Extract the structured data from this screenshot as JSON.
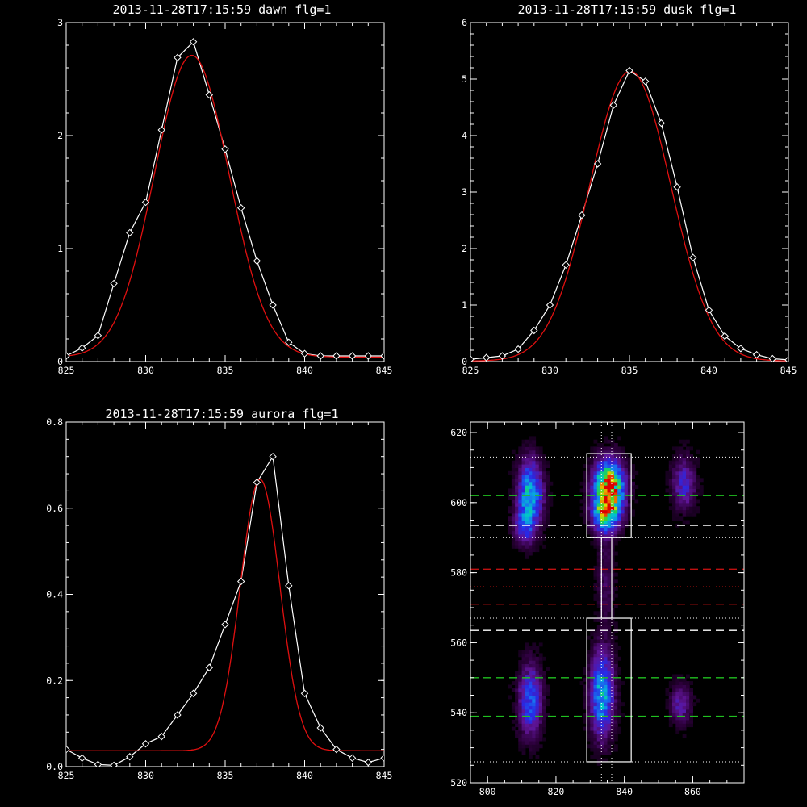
{
  "colors": {
    "background": "#000000",
    "axes": "#ffffff",
    "data_line": "#ffffff",
    "fit_line": "#e01010",
    "green_dash": "#20c020",
    "red_dash": "#c01010"
  },
  "chart_data": [
    {
      "type": "line",
      "title": "2013-11-28T17:15:59 dawn flg=1",
      "xlim": [
        825,
        845
      ],
      "ylim": [
        0,
        3
      ],
      "x_ticks": [
        825,
        830,
        835,
        840,
        845
      ],
      "y_ticks": [
        0,
        1,
        2,
        3
      ],
      "series": [
        {
          "style": "data-diamonds",
          "x": [
            825,
            826,
            827,
            828,
            829,
            830,
            831,
            832,
            833,
            834,
            835,
            836,
            837,
            838,
            839,
            840,
            841,
            842,
            843,
            844,
            845
          ],
          "values": [
            0.05,
            0.12,
            0.23,
            0.69,
            1.14,
            1.41,
            2.05,
            2.69,
            2.83,
            2.36,
            1.88,
            1.36,
            0.89,
            0.5,
            0.17,
            0.07,
            0.05,
            0.05,
            0.05,
            0.05,
            0.05
          ]
        },
        {
          "style": "fit-curve",
          "model": "gaussian",
          "amplitude": 2.67,
          "center": 832.9,
          "sigma": 2.35,
          "offset": 0.04
        }
      ]
    },
    {
      "type": "line",
      "title": "2013-11-28T17:15:59 dusk flg=1",
      "xlim": [
        825,
        845
      ],
      "ylim": [
        0,
        6
      ],
      "x_ticks": [
        825,
        830,
        835,
        840,
        845
      ],
      "y_ticks": [
        0,
        1,
        2,
        3,
        4,
        5,
        6
      ],
      "series": [
        {
          "style": "data-diamonds",
          "x": [
            825,
            826,
            827,
            828,
            829,
            830,
            831,
            832,
            833,
            834,
            835,
            836,
            837,
            838,
            839,
            840,
            841,
            842,
            843,
            844,
            845
          ],
          "values": [
            0.04,
            0.07,
            0.1,
            0.22,
            0.55,
            1.0,
            1.71,
            2.59,
            3.5,
            4.54,
            5.15,
            4.96,
            4.22,
            3.09,
            1.84,
            0.91,
            0.45,
            0.23,
            0.12,
            0.05,
            0.03
          ]
        },
        {
          "style": "fit-curve",
          "model": "gaussian",
          "amplitude": 5.13,
          "center": 835.05,
          "sigma": 2.55,
          "offset": 0.01
        }
      ]
    },
    {
      "type": "line",
      "title": "2013-11-28T17:15:59 aurora flg=1",
      "xlim": [
        825,
        845
      ],
      "ylim": [
        0,
        0.8
      ],
      "x_ticks": [
        825,
        830,
        835,
        840,
        845
      ],
      "y_ticks": [
        0.0,
        0.2,
        0.4,
        0.6,
        0.8
      ],
      "y_tick_labels": [
        "0.0",
        "0.2",
        "0.4",
        "0.6",
        "0.8"
      ],
      "series": [
        {
          "style": "data-diamonds",
          "x": [
            825,
            826,
            827,
            828,
            829,
            830,
            831,
            832,
            833,
            834,
            835,
            836,
            837,
            838,
            839,
            840,
            841,
            842,
            843,
            844,
            845
          ],
          "values": [
            0.04,
            0.02,
            0.005,
            0.003,
            0.023,
            0.053,
            0.07,
            0.12,
            0.17,
            0.23,
            0.33,
            0.43,
            0.66,
            0.72,
            0.42,
            0.17,
            0.09,
            0.04,
            0.02,
            0.01,
            0.02
          ]
        },
        {
          "style": "fit-curve",
          "model": "gaussian",
          "amplitude": 0.63,
          "center": 837.2,
          "sigma": 1.25,
          "offset": 0.037
        }
      ]
    },
    {
      "type": "heatmap",
      "xlim": [
        795,
        875
      ],
      "ylim": [
        520,
        623
      ],
      "x_ticks": [
        800,
        820,
        840,
        860
      ],
      "y_ticks": [
        520,
        540,
        560,
        580,
        600,
        620
      ],
      "blobs": [
        {
          "x": 812,
          "y": 602,
          "sx": 2.4,
          "sy": 6.5,
          "amp": 0.58
        },
        {
          "x": 810,
          "y": 593,
          "sx": 2.0,
          "sy": 3.5,
          "amp": 0.28
        },
        {
          "x": 835,
          "y": 604,
          "sx": 2.9,
          "sy": 5.0,
          "amp": 1.0
        },
        {
          "x": 834,
          "y": 596,
          "sx": 2.7,
          "sy": 3.5,
          "amp": 0.55
        },
        {
          "x": 857,
          "y": 605,
          "sx": 2.3,
          "sy": 5.0,
          "amp": 0.28
        },
        {
          "x": 812,
          "y": 543,
          "sx": 2.3,
          "sy": 7.0,
          "amp": 0.4
        },
        {
          "x": 833,
          "y": 545,
          "sx": 2.3,
          "sy": 8.0,
          "amp": 0.55
        },
        {
          "x": 856,
          "y": 542,
          "sx": 2.1,
          "sy": 4.0,
          "amp": 0.22
        },
        {
          "x": 834,
          "y": 578,
          "sx": 1.8,
          "sy": 10.0,
          "amp": 0.12
        }
      ],
      "boxes": [
        {
          "x0": 829,
          "x1": 842,
          "y0": 590,
          "y1": 614
        },
        {
          "x0": 829,
          "x1": 842,
          "y0": 526,
          "y1": 567
        },
        {
          "x0": 833.3,
          "x1": 836.3,
          "y0": 567,
          "y1": 590
        }
      ],
      "hlines": [
        {
          "y": 602,
          "color": "green",
          "dash": "long"
        },
        {
          "y": 550,
          "color": "green",
          "dash": "long"
        },
        {
          "y": 539,
          "color": "green",
          "dash": "long"
        },
        {
          "y": 593.5,
          "color": "white",
          "dash": "long"
        },
        {
          "y": 563.5,
          "color": "white",
          "dash": "long"
        },
        {
          "y": 581,
          "color": "red",
          "dash": "long"
        },
        {
          "y": 571,
          "color": "red",
          "dash": "long"
        },
        {
          "y": 613,
          "color": "white",
          "dash": "dot"
        },
        {
          "y": 590,
          "color": "white",
          "dash": "dot"
        },
        {
          "y": 576,
          "color": "red",
          "dash": "dot"
        },
        {
          "y": 567,
          "color": "white",
          "dash": "dot"
        },
        {
          "y": 526,
          "color": "white",
          "dash": "dot"
        }
      ],
      "vlines": [
        {
          "x": 833.3,
          "color": "white",
          "dash": "dot"
        },
        {
          "x": 836.3,
          "color": "white",
          "dash": "dot"
        }
      ]
    }
  ]
}
